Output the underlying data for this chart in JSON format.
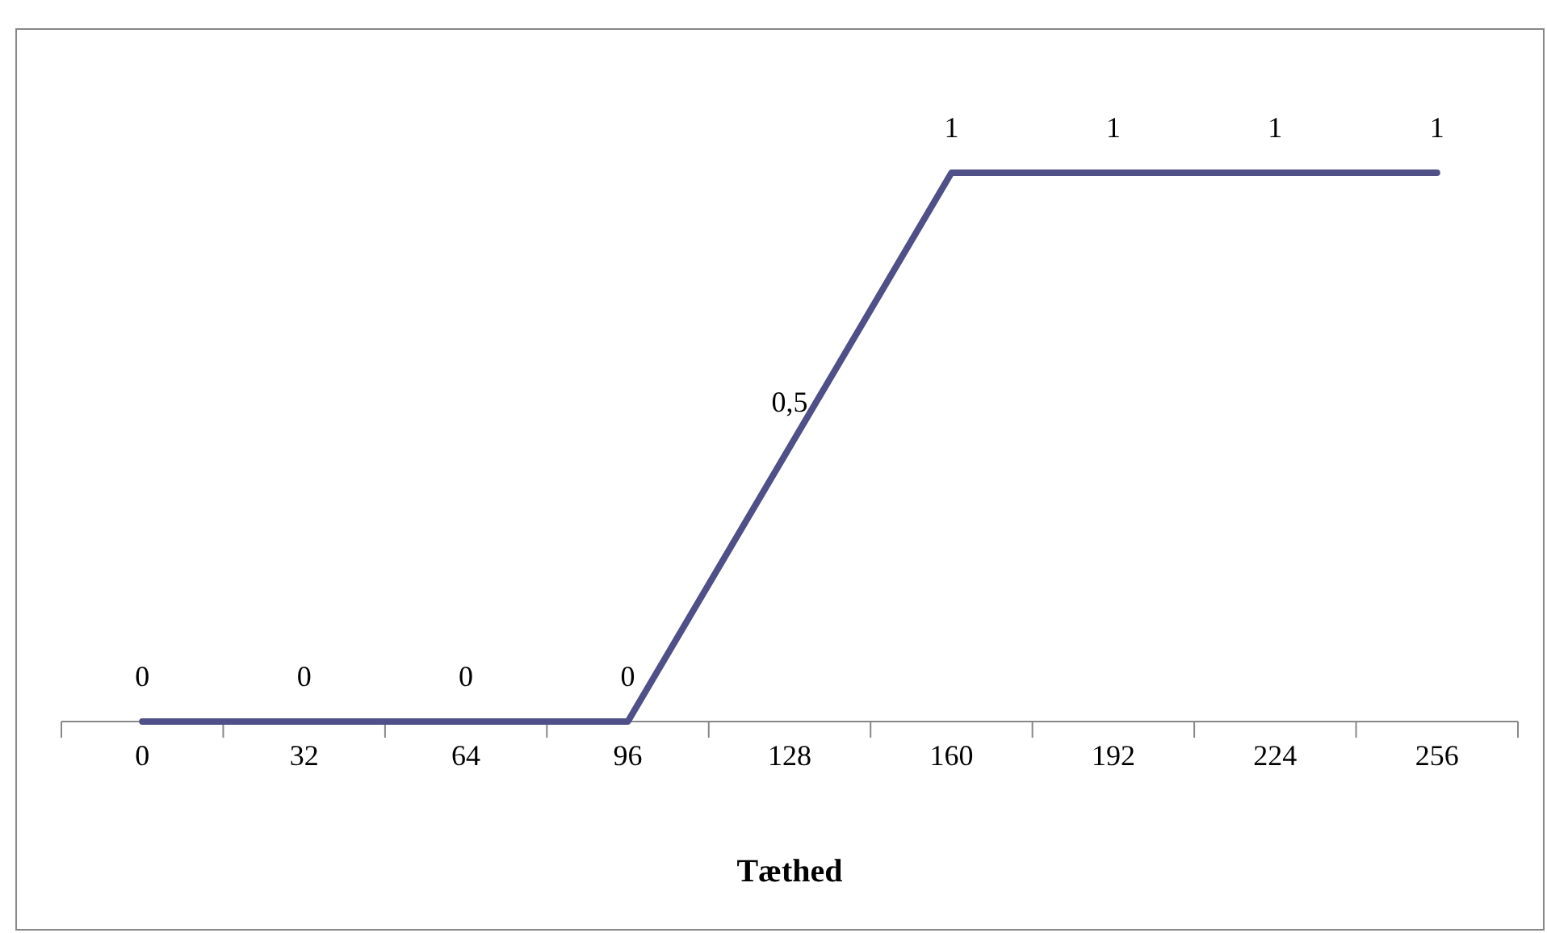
{
  "chart_data": {
    "type": "line",
    "xlabel": "Tæthed",
    "categories": [
      "0",
      "32",
      "64",
      "96",
      "128",
      "160",
      "192",
      "224",
      "256"
    ],
    "series": [
      {
        "color": "#4f5088",
        "values": [
          0,
          0,
          0,
          0,
          0.5,
          1,
          1,
          1,
          1
        ],
        "value_labels": [
          "0",
          "0",
          "0",
          "0",
          "0,5",
          "1",
          "1",
          "1",
          "1"
        ]
      }
    ],
    "marker": "none",
    "line_style": "solid"
  }
}
